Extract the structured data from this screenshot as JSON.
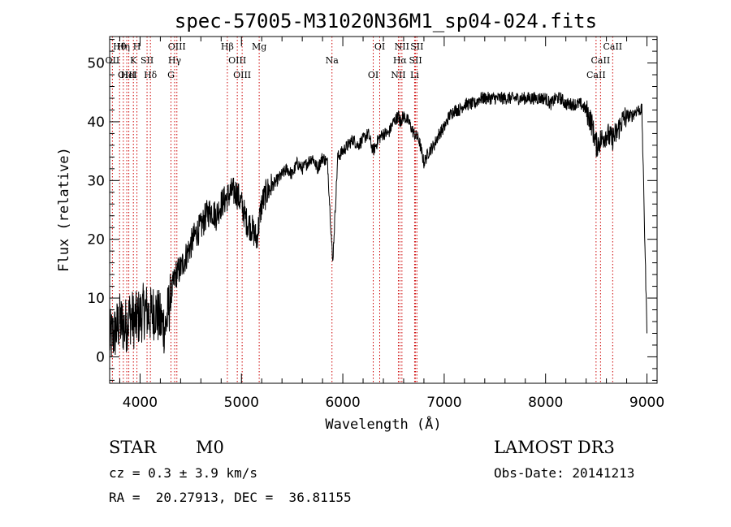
{
  "chart_data": {
    "type": "line",
    "title": "spec-57005-M31020N36M1_sp04-024.fits",
    "xlabel": "Wavelength (Å)",
    "ylabel": "Flux (relative)",
    "xlim": [
      3700,
      9100
    ],
    "ylim": [
      -4.5,
      54.5
    ],
    "xticks": [
      4000,
      5000,
      6000,
      7000,
      8000,
      9000
    ],
    "yticks": [
      0,
      10,
      20,
      30,
      40,
      50
    ],
    "grid": false,
    "line_color": "#000000",
    "marker_color": "#cc0000",
    "series": [
      {
        "x": [
          3700,
          3750,
          3800,
          3850,
          3900,
          3950,
          4000,
          4050,
          4100,
          4150,
          4200,
          4250,
          4300,
          4350,
          4400,
          4450,
          4500,
          4550,
          4600,
          4650,
          4700,
          4750,
          4800,
          4850,
          4900,
          4950,
          5000,
          5050,
          5100,
          5150,
          5200,
          5250,
          5300,
          5350,
          5400,
          5450,
          5500,
          5550,
          5600,
          5650,
          5700,
          5750,
          5800,
          5850,
          5900,
          5950,
          6000,
          6050,
          6100,
          6150,
          6200,
          6250,
          6300,
          6350,
          6400,
          6450,
          6500,
          6550,
          6563,
          6600,
          6650,
          6700,
          6750,
          6800,
          6850,
          6900,
          6950,
          7000,
          7050,
          7100,
          7150,
          7200,
          7250,
          7300,
          7350,
          7400,
          7450,
          7500,
          7550,
          7600,
          7650,
          7700,
          7750,
          7800,
          7850,
          7900,
          7950,
          8000,
          8050,
          8100,
          8150,
          8200,
          8250,
          8300,
          8350,
          8400,
          8450,
          8500,
          8550,
          8600,
          8650,
          8700,
          8750,
          8800,
          8850,
          8900,
          8950,
          9000
        ],
        "y": [
          3,
          4,
          6,
          5,
          7,
          6,
          7,
          8,
          7,
          8,
          6,
          5,
          10,
          14,
          15,
          17,
          19,
          21,
          22,
          24,
          25,
          24,
          26,
          27,
          28,
          28,
          26,
          23,
          22,
          20,
          26,
          28,
          29,
          30,
          31,
          32,
          31,
          33,
          32,
          33,
          34,
          32,
          34,
          33,
          16,
          34,
          35,
          36,
          37,
          36,
          37,
          38,
          35,
          37,
          38,
          38,
          40,
          41,
          40,
          41,
          40,
          38,
          37,
          33,
          35,
          36,
          38,
          39,
          41,
          42,
          42,
          43,
          43,
          43,
          44,
          44,
          44,
          44,
          44,
          44,
          44,
          44,
          44,
          44,
          44,
          44,
          44,
          44,
          43,
          44,
          44,
          43,
          43,
          43,
          43,
          42,
          40,
          36,
          37,
          38,
          37,
          38,
          40,
          41,
          41,
          42,
          42,
          4
        ]
      }
    ],
    "line_markers": [
      {
        "label": "Hθ",
        "x": 3798
      },
      {
        "label": "OII",
        "x": 3727
      },
      {
        "label": "OIII",
        "x": 3869
      },
      {
        "label": "Hη",
        "x": 3835
      },
      {
        "label": "K",
        "x": 3934
      },
      {
        "label": "HeI",
        "x": 3889
      },
      {
        "label": "H",
        "x": 3969
      },
      {
        "label": "SII",
        "x": 4069
      },
      {
        "label": "Hδ",
        "x": 4102
      },
      {
        "label": "OIII",
        "x": 4363
      },
      {
        "label": "Hγ",
        "x": 4341
      },
      {
        "label": "G",
        "x": 4305
      },
      {
        "label": "Hβ",
        "x": 4861
      },
      {
        "label": "OIII",
        "x": 4959
      },
      {
        "label": "OIII",
        "x": 5007
      },
      {
        "label": "Mg",
        "x": 5175
      },
      {
        "label": "Na",
        "x": 5893
      },
      {
        "label": "OI",
        "x": 6300
      },
      {
        "label": "OI",
        "x": 6364
      },
      {
        "label": "Hα",
        "x": 6563
      },
      {
        "label": "NII",
        "x": 6548
      },
      {
        "label": "NII",
        "x": 6583
      },
      {
        "label": "SII",
        "x": 6717
      },
      {
        "label": "Li",
        "x": 6708
      },
      {
        "label": "SII",
        "x": 6731
      },
      {
        "label": "CaII",
        "x": 8542
      },
      {
        "label": "CaII",
        "x": 8498
      },
      {
        "label": "CaII",
        "x": 8662
      }
    ]
  },
  "info": {
    "object_class": "STAR",
    "subclass": "M0",
    "redshift_text": "cz = 0.3 ± 3.9 km/s",
    "coords_text": "RA =  20.27913, DEC =  36.81155",
    "survey": "LAMOST DR3",
    "obs_date_text": "Obs-Date: 20141213"
  }
}
